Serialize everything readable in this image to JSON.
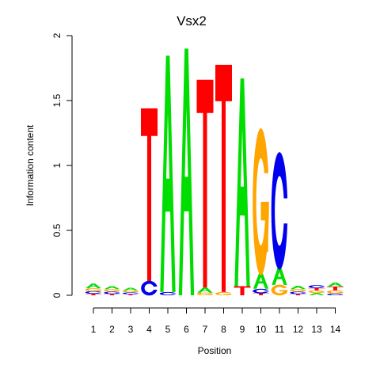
{
  "chart_data": {
    "type": "sequence-logo",
    "title": "Vsx2",
    "xlabel": "Position",
    "ylabel": "Information content",
    "ylim": [
      0,
      2
    ],
    "y_ticks": [
      "0",
      "0.5",
      "1",
      "1.5",
      "2"
    ],
    "positions": [
      "1",
      "2",
      "3",
      "4",
      "5",
      "6",
      "7",
      "8",
      "9",
      "10",
      "11",
      "12",
      "13",
      "14"
    ],
    "alphabet_colors": {
      "A": "#00dd00",
      "C": "#0000ee",
      "G": "#ffa500",
      "T": "#ff0000"
    },
    "stacks": [
      [
        [
          "T",
          0.012
        ],
        [
          "C",
          0.02
        ],
        [
          "G",
          0.022
        ],
        [
          "A",
          0.036
        ]
      ],
      [
        [
          "T",
          0.01
        ],
        [
          "C",
          0.018
        ],
        [
          "G",
          0.02
        ],
        [
          "A",
          0.022
        ]
      ],
      [
        [
          "T",
          0.008
        ],
        [
          "C",
          0.014
        ],
        [
          "G",
          0.016
        ],
        [
          "A",
          0.02
        ]
      ],
      [
        [
          "C",
          0.11
        ],
        [
          "T",
          1.33
        ]
      ],
      [
        [
          "C",
          0.025
        ],
        [
          "A",
          1.82
        ]
      ],
      [
        [
          "A",
          1.9
        ]
      ],
      [
        [
          "G",
          0.02
        ],
        [
          "A",
          0.04
        ],
        [
          "T",
          1.6
        ]
      ],
      [
        [
          "G",
          0.025
        ],
        [
          "T",
          1.75
        ]
      ],
      [
        [
          "T",
          0.07
        ],
        [
          "A",
          1.6
        ]
      ],
      [
        [
          "T",
          0.015
        ],
        [
          "C",
          0.035
        ],
        [
          "A",
          0.12
        ],
        [
          "G",
          1.1
        ]
      ],
      [
        [
          "G",
          0.08
        ],
        [
          "A",
          0.13
        ],
        [
          "C",
          0.88
        ]
      ],
      [
        [
          "T",
          0.01
        ],
        [
          "C",
          0.018
        ],
        [
          "G",
          0.02
        ],
        [
          "A",
          0.025
        ]
      ],
      [
        [
          "A",
          0.018
        ],
        [
          "G",
          0.02
        ],
        [
          "T",
          0.018
        ],
        [
          "C",
          0.022
        ]
      ],
      [
        [
          "C",
          0.014
        ],
        [
          "G",
          0.024
        ],
        [
          "T",
          0.03
        ],
        [
          "A",
          0.03
        ]
      ]
    ]
  }
}
